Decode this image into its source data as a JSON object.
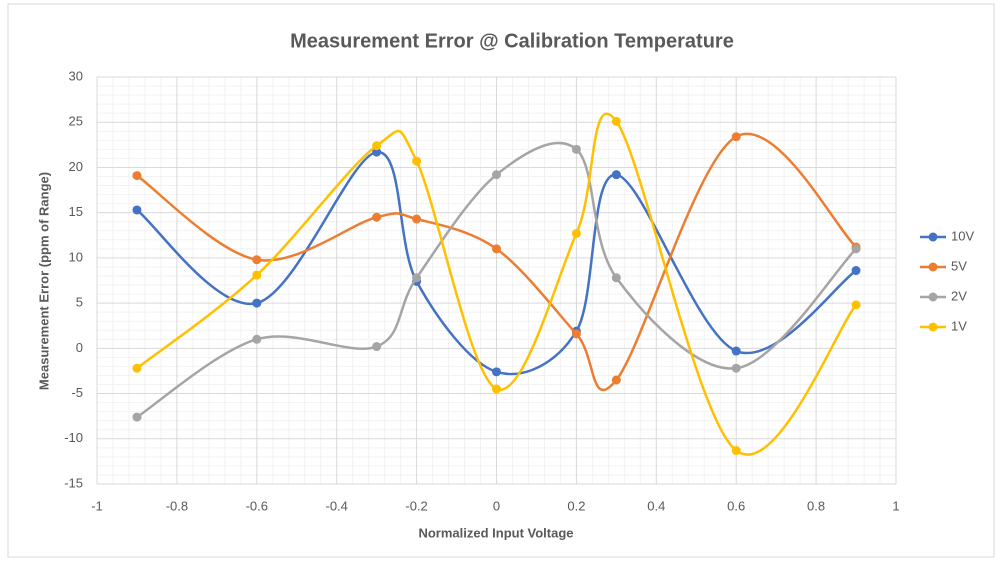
{
  "chart_data": {
    "type": "line",
    "smooth": true,
    "markers": true,
    "title": "Measurement Error @ Calibration Temperature",
    "x_label": "Normalized Input Voltage",
    "y_label": "Measurement Error  (ppm of Range)",
    "x": [
      -0.9,
      -0.6,
      -0.3,
      -0.2,
      0,
      0.2,
      0.3,
      0.6,
      0.9
    ],
    "series": [
      {
        "name": "10V",
        "color": "#4472c4",
        "values": [
          15.3,
          5.0,
          21.7,
          7.4,
          -2.6,
          1.9,
          19.2,
          -0.3,
          8.6
        ]
      },
      {
        "name": "5V",
        "color": "#ed7d31",
        "values": [
          19.1,
          9.8,
          14.5,
          14.3,
          11.0,
          1.6,
          -3.5,
          23.4,
          11.2
        ]
      },
      {
        "name": "2V",
        "color": "#a5a5a5",
        "values": [
          -7.6,
          1.0,
          0.2,
          7.8,
          19.2,
          22.0,
          7.8,
          -2.2,
          11.0
        ]
      },
      {
        "name": "1V",
        "color": "#ffc000",
        "values": [
          -2.2,
          8.1,
          22.4,
          20.7,
          -4.5,
          12.7,
          25.1,
          -11.3,
          4.8
        ]
      }
    ],
    "xlim": [
      -1,
      1
    ],
    "xticks": [
      -1,
      -0.8,
      -0.6,
      -0.4,
      -0.2,
      0,
      0.2,
      0.4,
      0.6,
      0.8,
      1
    ],
    "ylim": [
      -15,
      30
    ],
    "yticks": [
      -15,
      -10,
      -5,
      0,
      5,
      10,
      15,
      20,
      25,
      30
    ],
    "grid": true,
    "minor_grid": true,
    "legend": "right"
  }
}
